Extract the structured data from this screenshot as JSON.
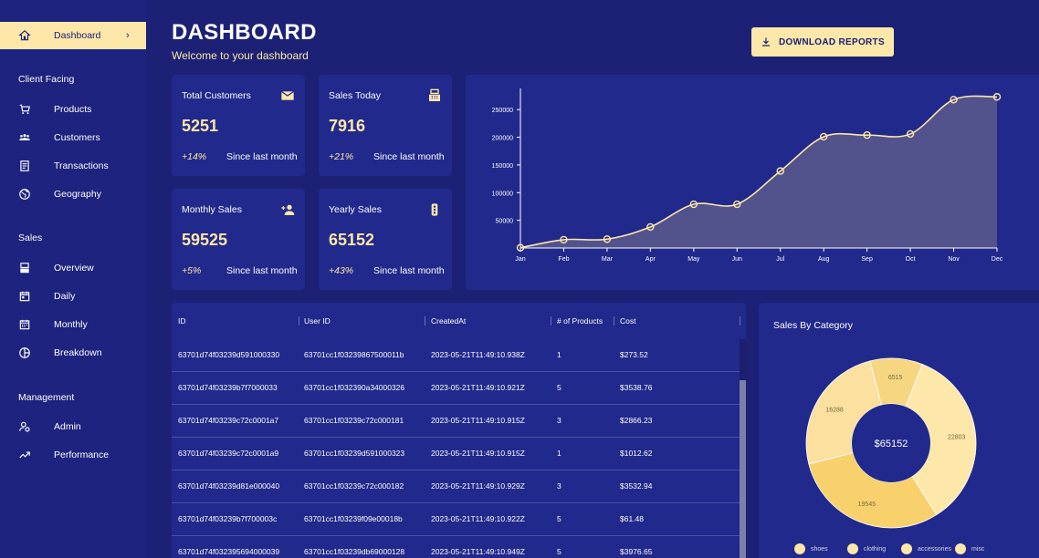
{
  "sidebar": {
    "active": {
      "label": "Dashboard",
      "icon": "home-icon",
      "chevron": "›"
    },
    "sections": [
      {
        "title": "Client Facing",
        "items": [
          {
            "label": "Products",
            "icon": "cart-icon"
          },
          {
            "label": "Customers",
            "icon": "groups-icon"
          },
          {
            "label": "Transactions",
            "icon": "receipt-icon"
          },
          {
            "label": "Geography",
            "icon": "globe-icon"
          }
        ]
      },
      {
        "title": "Sales",
        "items": [
          {
            "label": "Overview",
            "icon": "point-of-sale-icon"
          },
          {
            "label": "Daily",
            "icon": "calendar-today-icon"
          },
          {
            "label": "Monthly",
            "icon": "calendar-month-icon"
          },
          {
            "label": "Breakdown",
            "icon": "pie-chart-icon"
          }
        ]
      },
      {
        "title": "Management",
        "items": [
          {
            "label": "Admin",
            "icon": "admin-icon"
          },
          {
            "label": "Performance",
            "icon": "trending-up-icon"
          }
        ]
      }
    ]
  },
  "header": {
    "title": "DASHBOARD",
    "subtitle": "Welcome to your dashboard",
    "download_label": "DOWNLOAD REPORTS"
  },
  "stats": [
    {
      "title": "Total Customers",
      "value": "5251",
      "increase": "+14%",
      "since": "Since last month",
      "icon": "email-icon"
    },
    {
      "title": "Sales Today",
      "value": "7916",
      "increase": "+21%",
      "since": "Since last month",
      "icon": "cash-register-icon"
    },
    {
      "title": "Monthly Sales",
      "value": "59525",
      "increase": "+5%",
      "since": "Since last month",
      "icon": "person-add-icon"
    },
    {
      "title": "Yearly Sales",
      "value": "65152",
      "increase": "+43%",
      "since": "Since last month",
      "icon": "traffic-icon"
    }
  ],
  "chart_data": [
    {
      "type": "area",
      "x": [
        "Jan",
        "Feb",
        "Mar",
        "Apr",
        "May",
        "Jun",
        "Jul",
        "Aug",
        "Sep",
        "Oct",
        "Nov",
        "Dec"
      ],
      "series": [
        {
          "values": [
            500,
            15000,
            16000,
            38000,
            79000,
            79000,
            139000,
            201000,
            204000,
            206000,
            268000,
            273000
          ]
        }
      ],
      "yticks": [
        50000,
        100000,
        150000,
        200000,
        250000
      ],
      "ylim": [
        0,
        280000
      ],
      "line_color": "#fde7a9",
      "fill_color": "#5a5a8c"
    },
    {
      "type": "pie",
      "title": "Sales By Category",
      "center_label": "$65152",
      "labels": [
        "shoes",
        "clothing",
        "accessories",
        "misc"
      ],
      "values": [
        6515,
        22803,
        19545,
        16288
      ],
      "colors": [
        "#f6d680",
        "#fde7a9",
        "#f8d16d",
        "#fbe0a0"
      ]
    }
  ],
  "table": {
    "columns": [
      "ID",
      "User ID",
      "CreatedAt",
      "# of Products",
      "Cost"
    ],
    "rows": [
      [
        "63701d74f03239d591000330",
        "63701cc1f03239867500011b",
        "2023-05-21T11:49:10.938Z",
        "1",
        "$273.52"
      ],
      [
        "63701d74f03239b7f7000033",
        "63701cc1f032390a34000326",
        "2023-05-21T11:49:10.921Z",
        "5",
        "$3538.76"
      ],
      [
        "63701d74f03239c72c0001a7",
        "63701cc1f03239c72c000181",
        "2023-05-21T11:49:10.915Z",
        "3",
        "$2866.23"
      ],
      [
        "63701d74f03239c72c0001a9",
        "63701cc1f03239d591000323",
        "2023-05-21T11:49:10.915Z",
        "1",
        "$1012.62"
      ],
      [
        "63701d74f03239d81e000040",
        "63701cc1f03239c72c000182",
        "2023-05-21T11:49:10.929Z",
        "3",
        "$3532.94"
      ],
      [
        "63701d74f03239b7f700003c",
        "63701cc1f03239f09e00018b",
        "2023-05-21T11:49:10.922Z",
        "5",
        "$61.48"
      ],
      [
        "63701d74f032395694000039",
        "63701cc1f03239db69000128",
        "2023-05-21T11:49:10.949Z",
        "5",
        "$3976.65"
      ]
    ]
  }
}
